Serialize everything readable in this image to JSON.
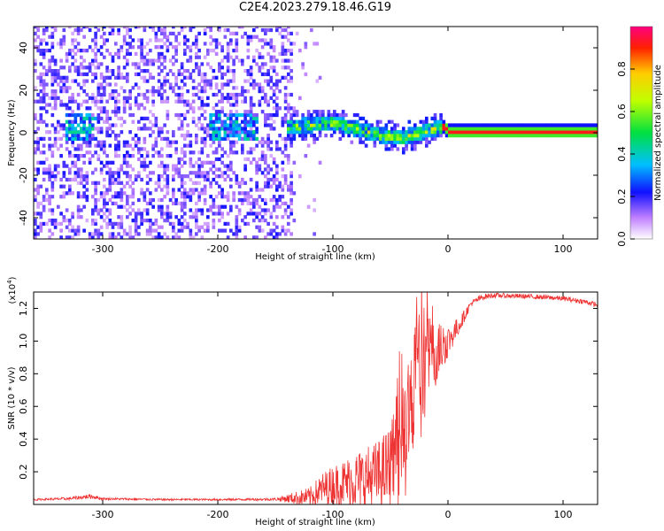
{
  "title": "C2E4.2023.279.18.46.G19",
  "chart_data": [
    {
      "type": "heatmap",
      "title": "",
      "xlabel": "Height of straight line (km)",
      "ylabel": "Frequency (Hz)",
      "xlim": [
        -360,
        130
      ],
      "ylim": [
        -50,
        50
      ],
      "xticks": [
        -300,
        -200,
        -100,
        0,
        100
      ],
      "yticks": [
        -40,
        -20,
        0,
        20,
        40
      ],
      "description_points": {
        "noise_region_x": [
          -360,
          -135
        ],
        "sparse_region_x": [
          -135,
          -110
        ],
        "ridge_x": [
          -140,
          -120,
          -100,
          -80,
          -60,
          -40,
          -20,
          -5,
          0,
          50,
          100,
          130
        ],
        "ridge_freq": [
          2,
          3,
          4,
          1,
          -2,
          -3,
          0,
          2,
          0,
          0,
          0,
          0
        ]
      },
      "colorbar": {
        "label": "Normalized spectral amplitude",
        "range": [
          0,
          1
        ],
        "ticks": [
          0.0,
          0.2,
          0.4,
          0.6,
          0.8
        ],
        "tick_labels": [
          "0.0",
          "0.2",
          "0.4",
          "0.6",
          "0.8"
        ]
      }
    },
    {
      "type": "line",
      "title": "",
      "xlabel": "Height of straight line (km)",
      "ylabel": "SNR (10 * v/v)",
      "scale_note": "(x10",
      "scale_exp": "4",
      "scale_close": ")",
      "xlim": [
        -360,
        130
      ],
      "ylim": [
        0,
        13000
      ],
      "xticks": [
        -300,
        -200,
        -100,
        0,
        100
      ],
      "yticks": [
        2000,
        4000,
        6000,
        8000,
        10000,
        12000
      ],
      "ytick_labels": [
        "0.2",
        "0.4",
        "0.6",
        "0.8",
        "1.0",
        "1.2"
      ],
      "series": [
        {
          "name": "SNR",
          "color": "#ee3333",
          "x": [
            -360,
            -330,
            -310,
            -300,
            -250,
            -200,
            -150,
            -120,
            -110,
            -100,
            -90,
            -80,
            -70,
            -60,
            -50,
            -45,
            -40,
            -35,
            -30,
            -25,
            -20,
            -15,
            -10,
            -5,
            0,
            10,
            20,
            30,
            40,
            60,
            80,
            100,
            120,
            130
          ],
          "y": [
            300,
            350,
            500,
            350,
            300,
            300,
            320,
            450,
            900,
            1200,
            1300,
            1500,
            1600,
            1800,
            2300,
            3200,
            3500,
            4500,
            6500,
            7500,
            8500,
            8800,
            9300,
            9700,
            10000,
            11000,
            12300,
            12700,
            12800,
            12750,
            12700,
            12600,
            12400,
            12200
          ],
          "amp": [
            60,
            90,
            150,
            70,
            60,
            60,
            80,
            600,
            1000,
            1200,
            1500,
            1800,
            2000,
            2200,
            2600,
            3500,
            4000,
            3800,
            4500,
            4500,
            3500,
            2500,
            2000,
            1500,
            1000,
            500,
            200,
            180,
            150,
            150,
            150,
            150,
            150,
            150
          ]
        }
      ]
    }
  ]
}
